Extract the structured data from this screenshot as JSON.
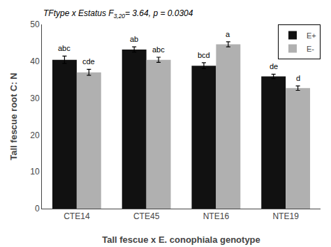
{
  "chart_data": {
    "type": "bar",
    "categories": [
      "CTE14",
      "CTE45",
      "NTE16",
      "NTE19"
    ],
    "series": [
      {
        "name": "E+",
        "color": "#111111",
        "values": [
          40.4,
          43.2,
          38.8,
          35.9
        ],
        "errors": [
          1.0,
          0.7,
          0.8,
          0.6
        ],
        "letters": [
          "abc",
          "ab",
          "bcd",
          "de"
        ]
      },
      {
        "name": "E-",
        "color": "#b0b0b0",
        "values": [
          37.0,
          40.4,
          44.6,
          32.7
        ],
        "errors": [
          0.8,
          0.7,
          0.7,
          0.6
        ],
        "letters": [
          "cde",
          "abc",
          "a",
          "d"
        ]
      }
    ],
    "xlabel": "Tall fescue x E. conophiala genotype",
    "ylabel": "Tall fescue root C: N",
    "annotations": [
      {
        "text": "TFtype x Estatus F",
        "subscript": "3,20",
        "after": "= 3.64, p = 0.0304"
      }
    ],
    "ylim": [
      0,
      50
    ],
    "yticks": [
      0,
      10,
      20,
      30,
      40,
      50
    ],
    "grid": false,
    "legend": "upper right"
  }
}
